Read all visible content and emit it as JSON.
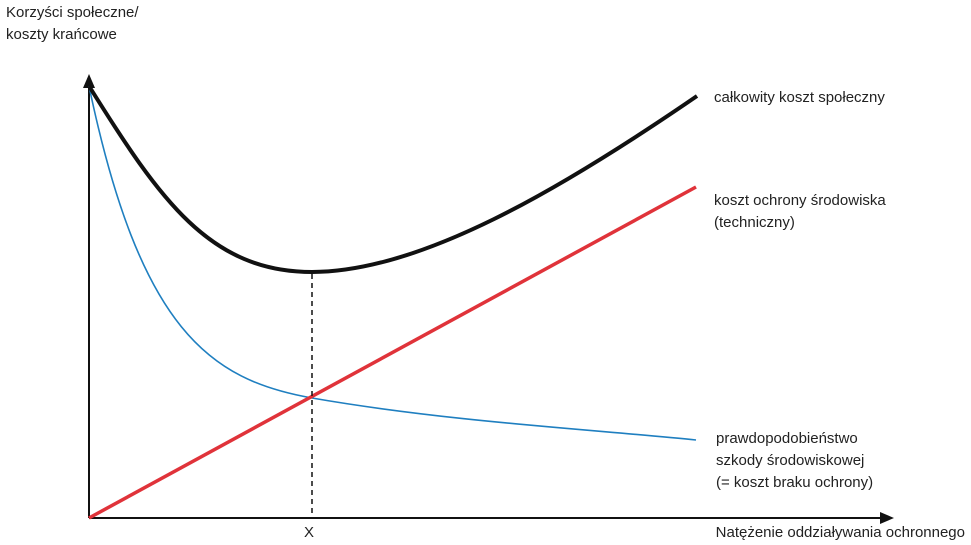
{
  "diagram": {
    "y_axis_label": [
      "Korzyści społeczne/",
      "koszty krańcowe"
    ],
    "x_axis_label": "Natężenie oddziaływania ochronnego",
    "x_tick_label": "X",
    "curves": {
      "total_social_cost": {
        "label": [
          "całkowity koszt społeczny"
        ],
        "color": "#111111"
      },
      "protection_cost": {
        "label": [
          "koszt ochrony środowiska",
          "(techniczny)"
        ],
        "color": "#e0333a"
      },
      "damage_probability": {
        "label": [
          "prawdopodobieństwo",
          "szkody środowiskowej",
          "(= koszt braku ochrony)"
        ],
        "color": "#1f7fc0"
      }
    },
    "axis_color": "#111111"
  }
}
